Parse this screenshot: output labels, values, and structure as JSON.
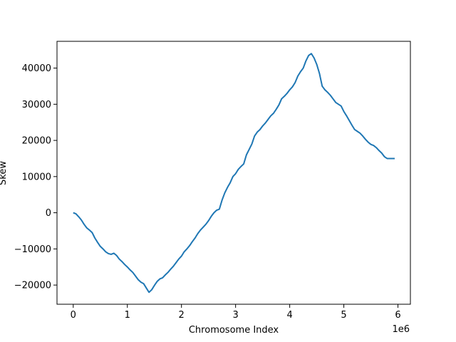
{
  "chart_data": {
    "type": "line",
    "title": "",
    "xlabel": "Chromosome Index",
    "ylabel": "Skew",
    "x_offset_label": "1e6",
    "xlim": [
      -300000,
      6230000
    ],
    "ylim": [
      -25300.0,
      47400
    ],
    "xticks": [
      0,
      1,
      2,
      3,
      4,
      5,
      6
    ],
    "xtick_scale": 1000000,
    "yticks": [
      -20000,
      -10000,
      0,
      10000,
      20000,
      30000,
      40000
    ],
    "grid": false,
    "legend": "none",
    "line_color": "#1f77b4",
    "series": [
      {
        "x": [
          0,
          50000,
          100000,
          150000,
          200000,
          250000,
          300000,
          350000,
          400000,
          450000,
          500000,
          550000,
          600000,
          650000,
          700000,
          750000,
          800000,
          850000,
          900000,
          950000,
          1000000,
          1050000,
          1100000,
          1150000,
          1200000,
          1250000,
          1300000,
          1350000,
          1400000,
          1450000,
          1500000,
          1550000,
          1600000,
          1650000,
          1700000,
          1750000,
          1800000,
          1850000,
          1900000,
          1950000,
          2000000,
          2050000,
          2100000,
          2150000,
          2200000,
          2250000,
          2300000,
          2350000,
          2400000,
          2450000,
          2500000,
          2550000,
          2600000,
          2650000,
          2700000,
          2750000,
          2800000,
          2850000,
          2900000,
          2950000,
          3000000,
          3050000,
          3100000,
          3150000,
          3200000,
          3250000,
          3300000,
          3350000,
          3400000,
          3450000,
          3500000,
          3550000,
          3600000,
          3650000,
          3700000,
          3750000,
          3800000,
          3850000,
          3900000,
          3950000,
          4000000,
          4050000,
          4100000,
          4150000,
          4200000,
          4250000,
          4300000,
          4350000,
          4400000,
          4450000,
          4500000,
          4550000,
          4600000,
          4650000,
          4700000,
          4750000,
          4800000,
          4850000,
          4900000,
          4950000,
          5000000,
          5050000,
          5100000,
          5150000,
          5200000,
          5250000,
          5300000,
          5350000,
          5400000,
          5450000,
          5500000,
          5550000,
          5600000,
          5650000,
          5700000,
          5750000,
          5800000,
          5850000,
          5900000,
          5940000
        ],
        "y": [
          0,
          -300,
          -1100,
          -2000,
          -3200,
          -4200,
          -4800,
          -5500,
          -7000,
          -8200,
          -9300,
          -10000,
          -10800,
          -11300,
          -11500,
          -11200,
          -11800,
          -12800,
          -13500,
          -14300,
          -15000,
          -15800,
          -16500,
          -17500,
          -18500,
          -19200,
          -19600,
          -20800,
          -22000,
          -21300,
          -20100,
          -19000,
          -18300,
          -18000,
          -17200,
          -16500,
          -15600,
          -14800,
          -13800,
          -12800,
          -12000,
          -10800,
          -10000,
          -9100,
          -8000,
          -7000,
          -5800,
          -4800,
          -4000,
          -3200,
          -2200,
          -1000,
          0,
          700,
          1000,
          3500,
          5500,
          7000,
          8300,
          10000,
          10800,
          12000,
          12800,
          13500,
          16000,
          17500,
          19000,
          21200,
          22300,
          23000,
          24000,
          24800,
          25800,
          26800,
          27500,
          28600,
          29800,
          31500,
          32200,
          33000,
          34000,
          34800,
          36000,
          37800,
          39000,
          40000,
          42000,
          43500,
          44000,
          42800,
          41000,
          38500,
          35000,
          34000,
          33300,
          32500,
          31500,
          30500,
          30000,
          29500,
          28000,
          26800,
          25500,
          24200,
          23000,
          22500,
          22000,
          21200,
          20300,
          19500,
          18900,
          18600,
          18000,
          17200,
          16500,
          15500,
          15000,
          15000,
          15000,
          15000
        ],
        "color": "#1f77b4"
      }
    ]
  }
}
